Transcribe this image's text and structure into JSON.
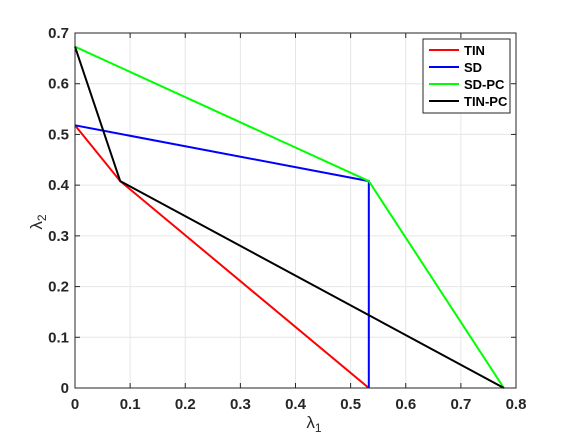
{
  "chart_data": {
    "type": "line",
    "title": "",
    "xlabel": {
      "base": "λ",
      "sub": "1"
    },
    "ylabel": {
      "base": "λ",
      "sub": "2"
    },
    "xlim": [
      0,
      0.8
    ],
    "ylim": [
      0,
      0.7
    ],
    "xticks": [
      0,
      0.1,
      0.2,
      0.3,
      0.4,
      0.5,
      0.6,
      0.7,
      0.8
    ],
    "yticks": [
      0,
      0.1,
      0.2,
      0.3,
      0.4,
      0.5,
      0.6,
      0.7
    ],
    "grid": true,
    "legend_position": "top-right",
    "series": [
      {
        "name": "TIN",
        "color": "#ff0000",
        "x": [
          0,
          0.082,
          0.533
        ],
        "y": [
          0.518,
          0.408,
          0
        ]
      },
      {
        "name": "SD",
        "color": "#0000ff",
        "x": [
          0,
          0.533,
          0.533
        ],
        "y": [
          0.518,
          0.408,
          0
        ]
      },
      {
        "name": "SD-PC",
        "color": "#00ff00",
        "x": [
          0,
          0.533,
          0.778
        ],
        "y": [
          0.673,
          0.408,
          0
        ]
      },
      {
        "name": "TIN-PC",
        "color": "#000000",
        "x": [
          0,
          0.082,
          0.778
        ],
        "y": [
          0.673,
          0.408,
          0
        ]
      }
    ]
  }
}
